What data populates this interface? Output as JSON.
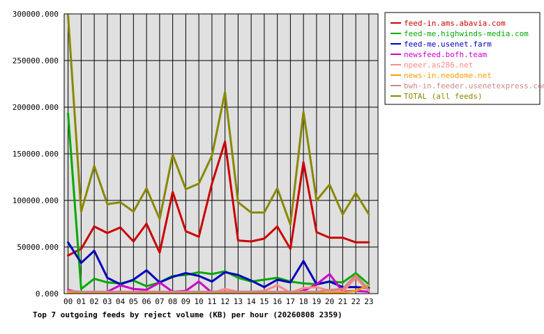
{
  "chart_data": {
    "type": "line",
    "title": "",
    "caption": "Top 7 outgoing feeds by reject volume (KB) per hour (20260808 2359)",
    "xlabel": "",
    "ylabel": "",
    "categories": [
      "00",
      "01",
      "02",
      "03",
      "04",
      "05",
      "06",
      "07",
      "08",
      "09",
      "10",
      "11",
      "12",
      "13",
      "14",
      "15",
      "16",
      "17",
      "18",
      "19",
      "20",
      "21",
      "22",
      "23"
    ],
    "y_ticks": [
      "0.000",
      "50000.000",
      "100000.000",
      "150000.000",
      "200000.000",
      "250000.000",
      "300000.000"
    ],
    "ylim": [
      0,
      300000
    ],
    "grid": true,
    "legend_position": "top-right",
    "series": [
      {
        "name": "feed-in.ams.abavia.com",
        "color": "#cc0000",
        "values": [
          41000,
          48000,
          72000,
          65000,
          71000,
          56000,
          75000,
          44000,
          109000,
          67000,
          61000,
          118000,
          163000,
          57000,
          56000,
          59000,
          72000,
          48000,
          141000,
          66000,
          60000,
          60000,
          55000,
          55000
        ]
      },
      {
        "name": "feed-me.highwinds-media.com",
        "color": "#00aa00",
        "values": [
          193000,
          5000,
          16000,
          12000,
          11000,
          14000,
          8000,
          12000,
          19000,
          20000,
          23000,
          21000,
          24000,
          17000,
          13000,
          15000,
          17000,
          13000,
          11000,
          10000,
          13000,
          12000,
          22000,
          10000
        ]
      },
      {
        "name": "feed-me.usenet.farm",
        "color": "#0000bb",
        "values": [
          55000,
          33000,
          46000,
          17000,
          10000,
          15000,
          25000,
          12000,
          18000,
          22000,
          19000,
          13000,
          23000,
          20000,
          14000,
          7000,
          15000,
          12000,
          35000,
          10000,
          13000,
          7000,
          7000,
          6000
        ]
      },
      {
        "name": "newsfeed.bofh.team",
        "color": "#cc00cc",
        "values": [
          4000,
          1000,
          1000,
          2000,
          9000,
          5000,
          4000,
          12000,
          2000,
          3000,
          13000,
          1000,
          1000,
          2000,
          1000,
          2000,
          1000,
          1000,
          3000,
          10000,
          21000,
          2000,
          3000,
          2000
        ]
      },
      {
        "name": "npeer.as286.net",
        "color": "#ff8888",
        "values": [
          2000,
          1000,
          1000,
          1000,
          2000,
          1000,
          1000,
          1000,
          1000,
          1000,
          2000,
          1000,
          5000,
          2000,
          2000,
          3000,
          9000,
          1000,
          6000,
          7000,
          3000,
          2000,
          17000,
          3000
        ]
      },
      {
        "name": "news-in.neodome.net",
        "color": "#ff9900",
        "values": [
          1000,
          1000,
          1000,
          1000,
          1000,
          1000,
          1000,
          1000,
          1000,
          1000,
          1000,
          1000,
          1000,
          1000,
          1000,
          1000,
          1000,
          1000,
          1000,
          1000,
          1000,
          1000,
          3000,
          9000
        ]
      },
      {
        "name": "bwh-in.feeder.usenetexpress.com",
        "color": "#cc8888",
        "values": [
          3000,
          2000,
          2000,
          2000,
          2000,
          2000,
          2000,
          2000,
          2000,
          2000,
          2000,
          2000,
          2000,
          2000,
          2000,
          2000,
          2000,
          2000,
          2000,
          2000,
          4000,
          5000,
          20000,
          4000
        ]
      },
      {
        "name": "TOTAL (all feeds)",
        "color": "#888800",
        "values": [
          298000,
          88000,
          137000,
          96000,
          98000,
          88000,
          113000,
          80000,
          149000,
          112000,
          118000,
          148000,
          216000,
          98000,
          87000,
          87000,
          113000,
          74000,
          195000,
          100000,
          117000,
          85000,
          108000,
          85000
        ]
      }
    ]
  }
}
